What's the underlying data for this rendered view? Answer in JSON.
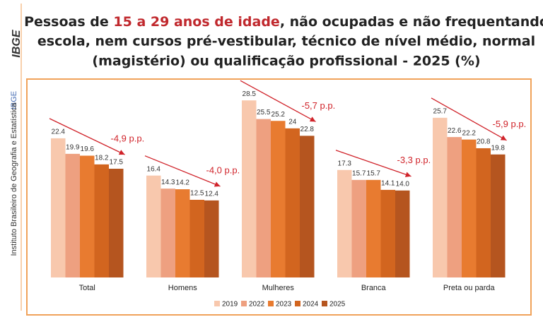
{
  "sidebar": {
    "logo": "IBGE",
    "institute": "Instituto Brasileiro de Geografia e Estatística",
    "brand": "IBGE"
  },
  "chart_data": {
    "type": "bar",
    "title_lines": [
      [
        "Pessoas de ",
        "15 a 29 anos de idade",
        ", não ocupadas e não frequentando"
      ],
      [
        "escola, nem cursos pré-vestibular, técnico de nível médio, normal"
      ],
      [
        "(magistério) ou qualificação profissional - 2025 (%)"
      ]
    ],
    "categories": [
      "Total",
      "Homens",
      "Mulheres",
      "Branca",
      "Preta ou parda"
    ],
    "series": [
      {
        "name": "2019",
        "color": "#f8c8ad",
        "values": [
          22.4,
          16.4,
          28.5,
          17.3,
          25.7
        ]
      },
      {
        "name": "2022",
        "color": "#eea080",
        "values": [
          19.9,
          14.3,
          25.5,
          15.7,
          22.6
        ]
      },
      {
        "name": "2023",
        "color": "#e87b30",
        "values": [
          19.6,
          14.2,
          25.2,
          15.7,
          22.2
        ]
      },
      {
        "name": "2024",
        "color": "#d2651f",
        "values": [
          18.2,
          12.5,
          24,
          14.1,
          20.8
        ]
      },
      {
        "name": "2025",
        "color": "#b5551f",
        "values": [
          17.5,
          12.4,
          22.8,
          14,
          19.8
        ],
        "value_labels": [
          "17.5",
          "12.4",
          "22.8",
          "14.0",
          "19.8"
        ]
      }
    ],
    "annotations": [
      "-4,9 p.p.",
      "-4,0 p.p.",
      "-5,7 p.p.",
      "-3,3 p.p.",
      "-5,9 p.p."
    ],
    "annotation_color": "#d0232a"
  }
}
